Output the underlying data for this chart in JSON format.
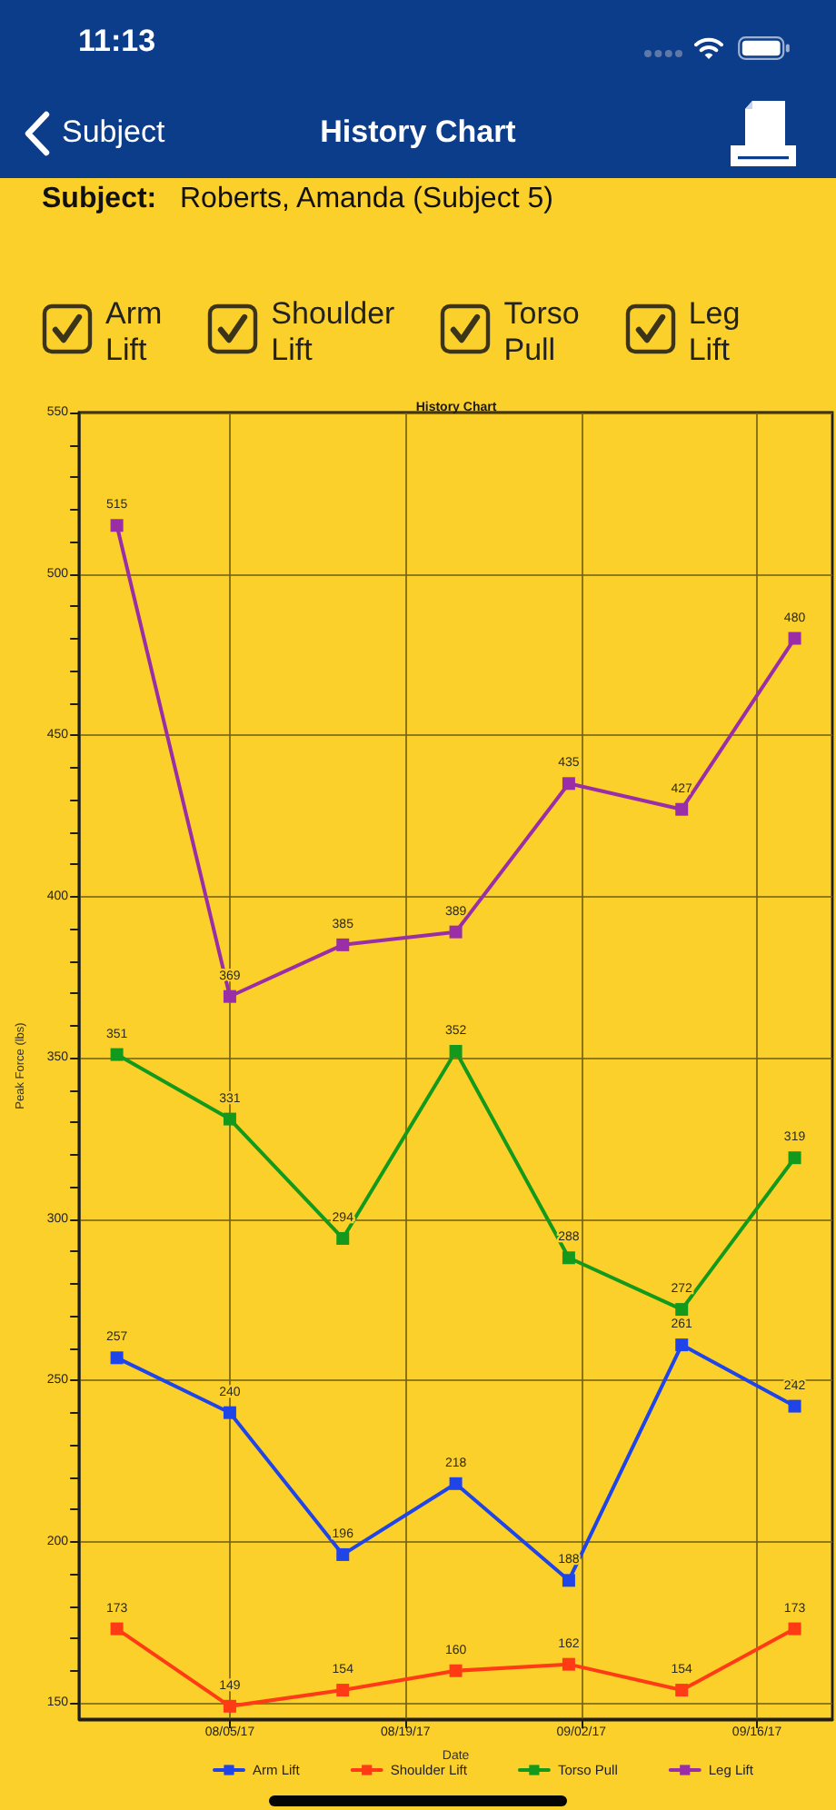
{
  "chart_data": {
    "type": "line",
    "title": "History Chart",
    "xlabel": "Date",
    "ylabel": "Peak Force (lbs)",
    "annotations": [
      "11:13",
      "Subject",
      "History Chart",
      "Subject:",
      "Roberts, Amanda (Subject 5)"
    ],
    "x": [
      "--07-27",
      "--08-05",
      "--08-14",
      "--08-23",
      "--09-01",
      "--09-10",
      "--09-19"
    ],
    "series": [
      {
        "name": "Arm Lift",
        "color": "#1f44e8",
        "values": [
          257,
          240,
          196,
          218,
          188,
          261,
          242
        ]
      },
      {
        "name": "Shoulder Lift",
        "color": "#ff3b16",
        "values": [
          173,
          149,
          154,
          160,
          162,
          154,
          173
        ]
      },
      {
        "name": "Torso Pull",
        "color": "#139a1c",
        "values": [
          351,
          331,
          294,
          352,
          288,
          272,
          319
        ]
      },
      {
        "name": "Leg Lift",
        "color": "#9a2ea6",
        "values": [
          515,
          369,
          385,
          389,
          435,
          427,
          480
        ]
      }
    ],
    "xlim": [
      "--07-24",
      "--09-22"
    ],
    "xticks": [
      {
        "value": "--08-05",
        "label": "08/05/17"
      },
      {
        "value": "--08-19",
        "label": "08/19/17"
      },
      {
        "value": "--09-02",
        "label": "09/02/17"
      },
      {
        "value": "--09-16",
        "label": "09/16/17"
      }
    ],
    "ylim": [
      145,
      550
    ],
    "yticks": [
      150,
      {
        "value": 160,
        "label": null
      },
      {
        "value": 170,
        "label": null
      },
      {
        "value": 180,
        "label": null
      },
      {
        "value": 190,
        "label": null
      },
      200,
      {
        "value": 210,
        "label": null
      },
      {
        "value": 220,
        "label": null
      },
      {
        "value": 230,
        "label": null
      },
      {
        "value": 240,
        "label": null
      },
      250,
      {
        "value": 260,
        "label": null
      },
      {
        "value": 270,
        "label": null
      },
      {
        "value": 280,
        "label": null
      },
      {
        "value": 290,
        "label": null
      },
      300,
      {
        "value": 310,
        "label": null
      },
      {
        "value": 320,
        "label": null
      },
      {
        "value": 330,
        "label": null
      },
      {
        "value": 340,
        "label": null
      },
      350,
      {
        "value": 360,
        "label": null
      },
      {
        "value": 370,
        "label": null
      },
      {
        "value": 380,
        "label": null
      },
      {
        "value": 390,
        "label": null
      },
      400,
      {
        "value": 410,
        "label": null
      },
      {
        "value": 420,
        "label": null
      },
      {
        "value": 430,
        "label": null
      },
      {
        "value": 440,
        "label": null
      },
      450,
      {
        "value": 460,
        "label": null
      },
      {
        "value": 470,
        "label": null
      },
      {
        "value": 480,
        "label": null
      },
      {
        "value": 490,
        "label": null
      },
      500,
      {
        "value": 510,
        "label": null
      },
      {
        "value": 520,
        "label": null
      },
      {
        "value": 530,
        "label": null
      },
      {
        "value": 540,
        "label": null
      },
      550
    ],
    "grid": true,
    "legend": "bottom",
    "marker": "square",
    "line_style": "solid",
    "data_labels": true
  }
}
